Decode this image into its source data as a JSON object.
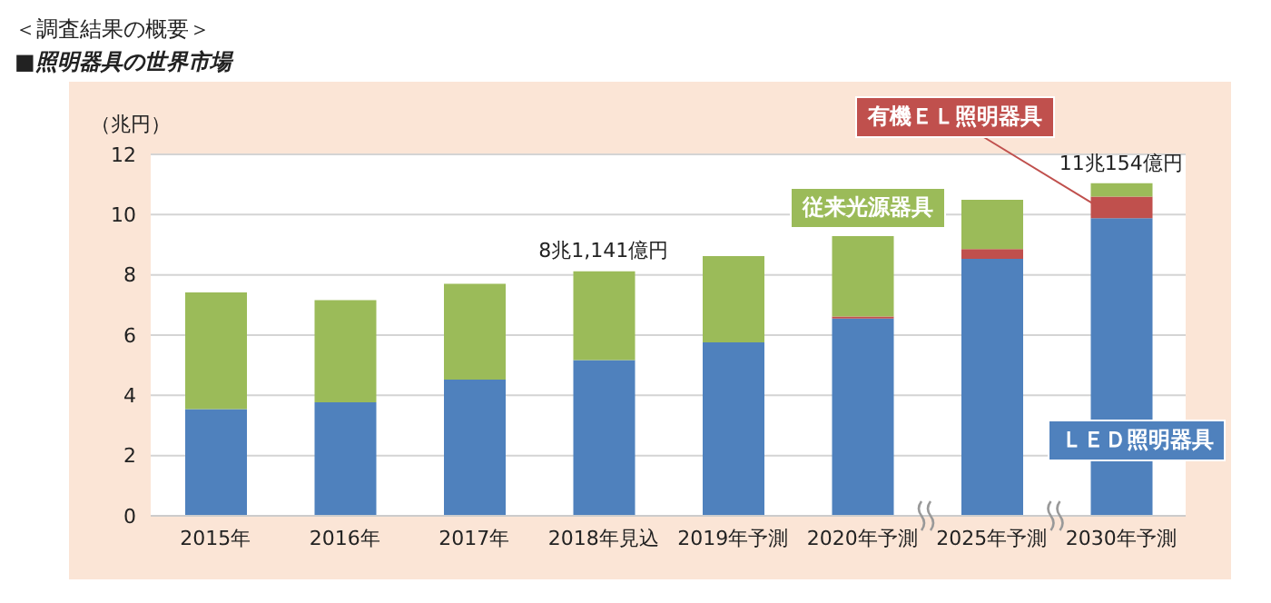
{
  "chart_data": {
    "type": "bar",
    "title": "＜調査結果の概要＞",
    "subtitle": "■照明器具の世界市場",
    "ylabel": "（兆円）",
    "categories": [
      "2015年",
      "2016年",
      "2017年",
      "2018年見込",
      "2019年予測",
      "2020年予測",
      "2025年予測",
      "2030年予測"
    ],
    "stacked": true,
    "ylim": [
      0,
      12
    ],
    "yticks": [
      0,
      2,
      4,
      6,
      8,
      10,
      12
    ],
    "grid": "y",
    "legend": false,
    "series": [
      {
        "name": "ＬＥＤ照明器具",
        "color": "#4f81bd",
        "values": [
          3.54,
          3.77,
          4.52,
          5.17,
          5.76,
          6.55,
          8.53,
          9.88
        ]
      },
      {
        "name": "有機ＥＬ照明器具",
        "color": "#c0504d",
        "values": [
          0,
          0,
          0,
          0,
          0,
          0.07,
          0.33,
          0.72
        ]
      },
      {
        "name": "従来光源器具",
        "color": "#9bbb59",
        "values": [
          3.88,
          3.39,
          3.18,
          2.95,
          2.86,
          2.67,
          1.63,
          0.44
        ]
      }
    ],
    "annotations": [
      {
        "text": "8兆1,141億円",
        "x": "2018年見込",
        "y": 8.1141
      },
      {
        "text": "11兆154億円",
        "x": "2030年予測",
        "y": 11.0154
      }
    ]
  }
}
